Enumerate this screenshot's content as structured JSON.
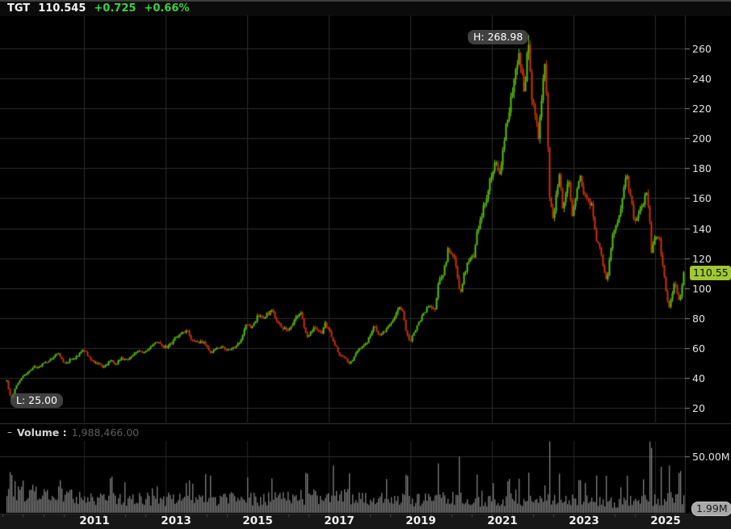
{
  "header": {
    "symbol": "TGT",
    "last_price": "110.545",
    "change": "+0.725",
    "change_percent": "+0.66%"
  },
  "price_pane": {
    "high_marker": "H: 268.98",
    "low_marker": "L: 25.00",
    "last_price_badge": "110.55",
    "y_tick_labels": [
      "260",
      "240",
      "220",
      "200",
      "180",
      "160",
      "140",
      "120",
      "100",
      "80",
      "60",
      "40",
      "20"
    ]
  },
  "volume_pane": {
    "collapse_glyph": "–",
    "title": "Volume :",
    "value": "1,988,466.00",
    "axis_label": "50.00M",
    "current_badge": "1.99M"
  },
  "x_axis": {
    "years": [
      "2011",
      "2013",
      "2015",
      "2017",
      "2019",
      "2021",
      "2023",
      "2025"
    ]
  },
  "colors": {
    "up_candle": "#5bc40f",
    "down_candle": "#d03208",
    "volume_bar": "#818181",
    "grid": "#2d2d2d",
    "grid_dim": "#242424",
    "badge_bg": "#a0c930",
    "volume_badge_bg": "#a9a9a9",
    "change_green": "#3ed23e",
    "axis_text": "#e2e2e2"
  },
  "chart_data": {
    "type": "candlestick",
    "symbol": "TGT",
    "title": "TGT weekly price with volume",
    "x_unit": "decimal_year",
    "x_range": [
      2009.1,
      2025.7
    ],
    "x_tick_years": [
      2011,
      2013,
      2015,
      2017,
      2019,
      2021,
      2023,
      2025
    ],
    "y_axis": {
      "side": "right",
      "min": 20,
      "max": 260,
      "step": 20
    },
    "grid": true,
    "high_annotation": {
      "t": 2021.88,
      "price": 268.98
    },
    "low_annotation": {
      "t": 2009.2,
      "price": 25.0
    },
    "last_close": 110.545,
    "close_anchors": [
      [
        2009.1,
        38
      ],
      [
        2009.16,
        30
      ],
      [
        2009.2,
        25.5
      ],
      [
        2009.3,
        33
      ],
      [
        2009.45,
        40
      ],
      [
        2009.6,
        43
      ],
      [
        2009.75,
        47
      ],
      [
        2009.9,
        48
      ],
      [
        2010.05,
        50
      ],
      [
        2010.2,
        53
      ],
      [
        2010.35,
        57
      ],
      [
        2010.5,
        49
      ],
      [
        2010.65,
        52
      ],
      [
        2010.8,
        54
      ],
      [
        2010.95,
        59
      ],
      [
        2011.05,
        57
      ],
      [
        2011.15,
        52
      ],
      [
        2011.3,
        50
      ],
      [
        2011.45,
        47
      ],
      [
        2011.55,
        49
      ],
      [
        2011.65,
        52
      ],
      [
        2011.75,
        49
      ],
      [
        2011.9,
        53
      ],
      [
        2012.05,
        52
      ],
      [
        2012.2,
        56
      ],
      [
        2012.35,
        58
      ],
      [
        2012.5,
        57
      ],
      [
        2012.65,
        62
      ],
      [
        2012.8,
        64
      ],
      [
        2012.95,
        60
      ],
      [
        2013.1,
        62
      ],
      [
        2013.25,
        67
      ],
      [
        2013.4,
        70
      ],
      [
        2013.5,
        72
      ],
      [
        2013.65,
        65
      ],
      [
        2013.8,
        64
      ],
      [
        2013.95,
        63
      ],
      [
        2014.1,
        57
      ],
      [
        2014.25,
        60
      ],
      [
        2014.4,
        61
      ],
      [
        2014.5,
        58
      ],
      [
        2014.65,
        60
      ],
      [
        2014.8,
        63
      ],
      [
        2014.95,
        75
      ],
      [
        2015.1,
        74
      ],
      [
        2015.25,
        81
      ],
      [
        2015.4,
        79
      ],
      [
        2015.5,
        83
      ],
      [
        2015.6,
        85
      ],
      [
        2015.7,
        79
      ],
      [
        2015.85,
        73
      ],
      [
        2016.0,
        72
      ],
      [
        2016.15,
        79
      ],
      [
        2016.3,
        84
      ],
      [
        2016.45,
        67
      ],
      [
        2016.55,
        70
      ],
      [
        2016.65,
        75
      ],
      [
        2016.8,
        69
      ],
      [
        2016.9,
        76
      ],
      [
        2017.0,
        72
      ],
      [
        2017.1,
        65
      ],
      [
        2017.25,
        55
      ],
      [
        2017.4,
        53
      ],
      [
        2017.5,
        49
      ],
      [
        2017.6,
        53
      ],
      [
        2017.7,
        58
      ],
      [
        2017.85,
        61
      ],
      [
        2017.95,
        65
      ],
      [
        2018.1,
        75
      ],
      [
        2018.2,
        69
      ],
      [
        2018.35,
        71
      ],
      [
        2018.5,
        77
      ],
      [
        2018.6,
        81
      ],
      [
        2018.72,
        87
      ],
      [
        2018.8,
        84
      ],
      [
        2018.9,
        70
      ],
      [
        2018.98,
        64
      ],
      [
        2019.1,
        72
      ],
      [
        2019.25,
        80
      ],
      [
        2019.4,
        86
      ],
      [
        2019.5,
        88
      ],
      [
        2019.6,
        86
      ],
      [
        2019.67,
        104
      ],
      [
        2019.8,
        109
      ],
      [
        2019.92,
        126
      ],
      [
        2020.02,
        123
      ],
      [
        2020.12,
        115
      ],
      [
        2020.2,
        95
      ],
      [
        2020.3,
        108
      ],
      [
        2020.42,
        119
      ],
      [
        2020.55,
        122
      ],
      [
        2020.63,
        138
      ],
      [
        2020.75,
        150
      ],
      [
        2020.88,
        163
      ],
      [
        2020.98,
        176
      ],
      [
        2021.08,
        184
      ],
      [
        2021.18,
        178
      ],
      [
        2021.28,
        196
      ],
      [
        2021.38,
        215
      ],
      [
        2021.48,
        230
      ],
      [
        2021.58,
        245
      ],
      [
        2021.65,
        259
      ],
      [
        2021.72,
        245
      ],
      [
        2021.78,
        228
      ],
      [
        2021.84,
        252
      ],
      [
        2021.88,
        266
      ],
      [
        2021.95,
        232
      ],
      [
        2022.05,
        217
      ],
      [
        2022.13,
        200
      ],
      [
        2022.2,
        222
      ],
      [
        2022.28,
        250
      ],
      [
        2022.34,
        222
      ],
      [
        2022.4,
        160
      ],
      [
        2022.5,
        142
      ],
      [
        2022.58,
        165
      ],
      [
        2022.64,
        178
      ],
      [
        2022.72,
        155
      ],
      [
        2022.8,
        162
      ],
      [
        2022.88,
        172
      ],
      [
        2022.95,
        148
      ],
      [
        2023.05,
        163
      ],
      [
        2023.14,
        176
      ],
      [
        2023.25,
        162
      ],
      [
        2023.35,
        158
      ],
      [
        2023.45,
        155
      ],
      [
        2023.55,
        131
      ],
      [
        2023.65,
        125
      ],
      [
        2023.75,
        112
      ],
      [
        2023.82,
        104
      ],
      [
        2023.9,
        125
      ],
      [
        2023.97,
        140
      ],
      [
        2024.05,
        143
      ],
      [
        2024.15,
        152
      ],
      [
        2024.25,
        170
      ],
      [
        2024.3,
        178
      ],
      [
        2024.4,
        157
      ],
      [
        2024.5,
        144
      ],
      [
        2024.6,
        150
      ],
      [
        2024.7,
        157
      ],
      [
        2024.78,
        165
      ],
      [
        2024.85,
        152
      ],
      [
        2024.9,
        125
      ],
      [
        2024.97,
        133
      ],
      [
        2025.05,
        137
      ],
      [
        2025.12,
        128
      ],
      [
        2025.2,
        112
      ],
      [
        2025.27,
        96
      ],
      [
        2025.33,
        86
      ],
      [
        2025.4,
        96
      ],
      [
        2025.47,
        105
      ],
      [
        2025.53,
        98
      ],
      [
        2025.6,
        90
      ],
      [
        2025.66,
        103
      ],
      [
        2025.7,
        110.5
      ]
    ],
    "volume_axis": {
      "top_tick_label": "50.00M",
      "top_tick_value_millions": 50,
      "current_label": "1.99M"
    },
    "volume_anchors_millions": [
      [
        2009.1,
        22
      ],
      [
        2010,
        17
      ],
      [
        2011,
        14
      ],
      [
        2012,
        12
      ],
      [
        2013,
        12
      ],
      [
        2014,
        13
      ],
      [
        2015,
        12
      ],
      [
        2016,
        13
      ],
      [
        2017,
        15
      ],
      [
        2018,
        13
      ],
      [
        2019,
        11
      ],
      [
        2020,
        13
      ],
      [
        2021,
        10
      ],
      [
        2022,
        11
      ],
      [
        2023,
        11
      ],
      [
        2024,
        9
      ],
      [
        2025,
        12
      ],
      [
        2025.7,
        13
      ]
    ],
    "volume_spikes_millions": [
      [
        2009.2,
        36
      ],
      [
        2010.4,
        28
      ],
      [
        2011.65,
        30
      ],
      [
        2012.0,
        26
      ],
      [
        2013.5,
        26
      ],
      [
        2014.1,
        34
      ],
      [
        2015.6,
        30
      ],
      [
        2016.45,
        36
      ],
      [
        2017.1,
        40
      ],
      [
        2017.5,
        33
      ],
      [
        2018.4,
        30
      ],
      [
        2018.9,
        32
      ],
      [
        2019.67,
        44
      ],
      [
        2020.2,
        47
      ],
      [
        2020.63,
        34
      ],
      [
        2021.4,
        28
      ],
      [
        2021.65,
        30
      ],
      [
        2021.88,
        34
      ],
      [
        2022.4,
        54
      ],
      [
        2022.64,
        33
      ],
      [
        2023.14,
        30
      ],
      [
        2023.55,
        34
      ],
      [
        2023.8,
        33
      ],
      [
        2024.3,
        32
      ],
      [
        2024.88,
        62
      ],
      [
        2025.13,
        38
      ],
      [
        2025.33,
        44
      ],
      [
        2025.6,
        36
      ]
    ]
  }
}
